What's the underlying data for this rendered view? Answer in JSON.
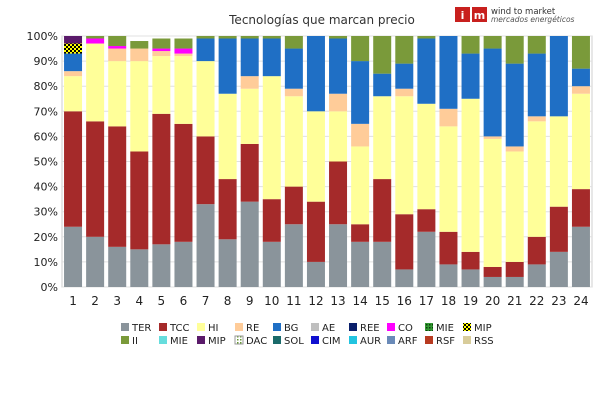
{
  "brand": {
    "mark": "im",
    "line1": "wind to market",
    "line2": "mercados energéticos",
    "color": "#c8201e"
  },
  "chart_data": {
    "type": "bar",
    "stacked": true,
    "title": "Tecnologías que marcan precio",
    "xlabel": "",
    "ylabel": "",
    "ylim": [
      0,
      100
    ],
    "yticks": [
      "0%",
      "10%",
      "20%",
      "30%",
      "40%",
      "50%",
      "60%",
      "70%",
      "80%",
      "90%",
      "100%"
    ],
    "grid": true,
    "legend_position": "bottom",
    "categories": [
      "1",
      "2",
      "3",
      "4",
      "5",
      "6",
      "7",
      "8",
      "9",
      "10",
      "11",
      "12",
      "13",
      "14",
      "15",
      "16",
      "17",
      "18",
      "19",
      "20",
      "21",
      "22",
      "23",
      "24"
    ],
    "series": [
      {
        "name": "TER",
        "color": "#8a949b",
        "values": [
          24,
          20,
          16,
          15,
          17,
          18,
          33,
          19,
          34,
          18,
          25,
          10,
          25,
          18,
          18,
          7,
          22,
          9,
          7,
          4,
          4,
          9,
          14,
          24
        ]
      },
      {
        "name": "TCC",
        "color": "#a52a2a",
        "values": [
          46,
          46,
          48,
          39,
          52,
          47,
          27,
          24,
          23,
          17,
          15,
          24,
          25,
          7,
          25,
          22,
          9,
          13,
          7,
          4,
          6,
          11,
          18,
          15
        ]
      },
      {
        "name": "HI",
        "color": "#ffff99",
        "values": [
          14,
          31,
          26,
          36,
          23,
          27,
          30,
          34,
          22,
          49,
          36,
          36,
          20,
          31,
          33,
          47,
          42,
          42,
          61,
          51,
          44,
          46,
          36,
          38
        ]
      },
      {
        "name": "RE",
        "color": "#ffcc99",
        "values": [
          2,
          0,
          5,
          5,
          2,
          1,
          0,
          0,
          5,
          0,
          3,
          0,
          7,
          9,
          0,
          3,
          0,
          7,
          0,
          1,
          2,
          2,
          0,
          3
        ]
      },
      {
        "name": "BG",
        "color": "#1f6fc5",
        "values": [
          7,
          0,
          0,
          0,
          0,
          0,
          9,
          22,
          15,
          15,
          16,
          30,
          22,
          25,
          9,
          10,
          26,
          29,
          18,
          35,
          33,
          25,
          32,
          7
        ]
      },
      {
        "name": "AE",
        "color": "#bfbfbf",
        "values": [
          0,
          0,
          0,
          0,
          0,
          0,
          0,
          0,
          0,
          0,
          0,
          0,
          0,
          0,
          0,
          0,
          0,
          0,
          0,
          0,
          0,
          0,
          0,
          0
        ]
      },
      {
        "name": "REE",
        "color": "#0a1f6b",
        "values": [
          0,
          0,
          0,
          0,
          0,
          0,
          0,
          0,
          0,
          0,
          0,
          0,
          0,
          0,
          0,
          0,
          0,
          0,
          0,
          0,
          0,
          0,
          0,
          0
        ]
      },
      {
        "name": "CO",
        "color": "#ff00ff",
        "values": [
          0,
          2,
          1,
          0,
          1,
          2,
          0,
          0,
          0,
          0,
          0,
          0,
          0,
          0,
          0,
          0,
          0,
          0,
          0,
          0,
          0,
          0,
          0,
          0
        ]
      },
      {
        "name": "MIE",
        "color": "#339933",
        "pattern": "dots-dark",
        "values": [
          0,
          0,
          0,
          0,
          0,
          0,
          0,
          0,
          0,
          0,
          0,
          0,
          0,
          0,
          0,
          0,
          0,
          0,
          0,
          0,
          0,
          0,
          0,
          0
        ]
      },
      {
        "name": "MIP",
        "color": "#ffff00",
        "pattern": "check-black",
        "values": [
          4,
          0,
          0,
          0,
          0,
          0,
          0,
          0,
          0,
          0,
          0,
          0,
          0,
          0,
          0,
          0,
          0,
          0,
          0,
          0,
          0,
          0,
          0,
          0
        ]
      },
      {
        "name": "II",
        "color": "#7a9a3a",
        "values": [
          0,
          1,
          4,
          3,
          4,
          4,
          1,
          1,
          1,
          1,
          5,
          0,
          1,
          10,
          15,
          11,
          1,
          0,
          7,
          5,
          11,
          7,
          0,
          13
        ]
      },
      {
        "name": "MIE",
        "color": "#66dddd",
        "values": [
          0,
          0,
          0,
          0,
          0,
          0,
          0,
          0,
          0,
          0,
          0,
          0,
          0,
          0,
          0,
          0,
          0,
          0,
          0,
          0,
          0,
          0,
          0,
          0
        ]
      },
      {
        "name": "MIP",
        "color": "#5a1a6a",
        "values": [
          3,
          0,
          0,
          0,
          0,
          0,
          0,
          0,
          0,
          0,
          0,
          0,
          0,
          0,
          0,
          0,
          0,
          0,
          0,
          0,
          0,
          0,
          0,
          0
        ]
      },
      {
        "name": "DAC",
        "color": "#ffffff",
        "pattern": "dots-green",
        "values": [
          0,
          0,
          0,
          0,
          0,
          0,
          0,
          0,
          0,
          0,
          0,
          0,
          0,
          0,
          0,
          0,
          0,
          0,
          0,
          0,
          0,
          0,
          0,
          0
        ]
      },
      {
        "name": "SOL",
        "color": "#1a6a6a",
        "values": [
          0,
          0,
          0,
          0,
          0,
          0,
          0,
          0,
          0,
          0,
          0,
          0,
          0,
          0,
          0,
          0,
          0,
          0,
          0,
          0,
          0,
          0,
          0,
          0
        ]
      },
      {
        "name": "CIM",
        "color": "#1010d0",
        "values": [
          0,
          0,
          0,
          0,
          0,
          0,
          0,
          0,
          0,
          0,
          0,
          0,
          0,
          0,
          0,
          0,
          0,
          0,
          0,
          0,
          0,
          0,
          0,
          0
        ]
      },
      {
        "name": "AUR",
        "color": "#22c4e0",
        "values": [
          0,
          0,
          0,
          0,
          0,
          0,
          0,
          0,
          0,
          0,
          0,
          0,
          0,
          0,
          0,
          0,
          0,
          0,
          0,
          0,
          0,
          0,
          0,
          0
        ]
      },
      {
        "name": "ARF",
        "color": "#6a8ab8",
        "values": [
          0,
          0,
          0,
          0,
          0,
          0,
          0,
          0,
          0,
          0,
          0,
          0,
          0,
          0,
          0,
          0,
          0,
          0,
          0,
          0,
          0,
          0,
          0,
          0
        ]
      },
      {
        "name": "RSF",
        "color": "#b83a20",
        "values": [
          0,
          0,
          0,
          0,
          0,
          0,
          0,
          0,
          0,
          0,
          0,
          0,
          0,
          0,
          0,
          0,
          0,
          0,
          0,
          0,
          0,
          0,
          0,
          0
        ]
      },
      {
        "name": "RSS",
        "color": "#d8cc9a",
        "values": [
          0,
          0,
          0,
          0,
          0,
          0,
          0,
          0,
          0,
          0,
          0,
          0,
          0,
          0,
          0,
          0,
          0,
          0,
          0,
          0,
          0,
          0,
          0,
          0
        ]
      }
    ]
  }
}
